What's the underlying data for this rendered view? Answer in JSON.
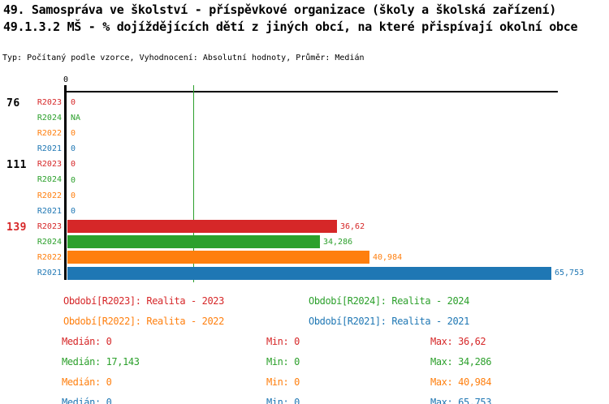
{
  "colors": {
    "red": "#d62728",
    "green": "#2ca02c",
    "orange": "#ff7f0e",
    "blue": "#1f77b4",
    "black": "#000000"
  },
  "header": {
    "title_line1": "49. Samospráva ve školství - příspěvkové organizace (školy a školská zařízení)",
    "title_line2": "49.1.3.2 MŠ - % dojíždějících dětí z jiných obcí, na které přispívají okolní obce",
    "meta_line": "Typ: Počítaný podle vzorce, Vyhodnocení: Absolutní hodnoty, Průměr: Medián"
  },
  "chart_data": {
    "type": "bar",
    "orientation": "horizontal",
    "xlim": [
      0,
      66.7
    ],
    "axis_origin_tick_label": "0",
    "grid": false,
    "median_marker": {
      "value": 17.143,
      "color": "green"
    },
    "series_names": [
      "R2023",
      "R2024",
      "R2022",
      "R2021"
    ],
    "groups": [
      {
        "label": "76",
        "label_color": "black",
        "rows": [
          {
            "series": "R2023",
            "color": "red",
            "value": 0,
            "value_label": "0"
          },
          {
            "series": "R2024",
            "color": "green",
            "value": null,
            "value_label": "NA"
          },
          {
            "series": "R2022",
            "color": "orange",
            "value": 0,
            "value_label": "0"
          },
          {
            "series": "R2021",
            "color": "blue",
            "value": 0,
            "value_label": "0"
          }
        ]
      },
      {
        "label": "111",
        "label_color": "black",
        "rows": [
          {
            "series": "R2023",
            "color": "red",
            "value": 0,
            "value_label": "0"
          },
          {
            "series": "R2024",
            "color": "green",
            "value": 0,
            "value_label": "0"
          },
          {
            "series": "R2022",
            "color": "orange",
            "value": 0,
            "value_label": "0"
          },
          {
            "series": "R2021",
            "color": "blue",
            "value": 0,
            "value_label": "0"
          }
        ]
      },
      {
        "label": "139",
        "label_color": "red",
        "rows": [
          {
            "series": "R2023",
            "color": "red",
            "value": 36.62,
            "value_label": "36,62"
          },
          {
            "series": "R2024",
            "color": "green",
            "value": 34.286,
            "value_label": "34,286"
          },
          {
            "series": "R2022",
            "color": "orange",
            "value": 40.984,
            "value_label": "40,984"
          },
          {
            "series": "R2021",
            "color": "blue",
            "value": 65.753,
            "value_label": "65,753"
          }
        ]
      }
    ],
    "legend": [
      {
        "text": "Období[R2023]: Realita - 2023",
        "color": "red"
      },
      {
        "text": "Období[R2024]: Realita - 2024",
        "color": "green"
      },
      {
        "text": "Období[R2022]: Realita - 2022",
        "color": "orange"
      },
      {
        "text": "Období[R2021]: Realita - 2021",
        "color": "blue"
      }
    ],
    "stats": [
      {
        "color": "red",
        "median": "Medián: 0",
        "min": "Min: 0",
        "max": "Max: 36,62"
      },
      {
        "color": "green",
        "median": "Medián: 17,143",
        "min": "Min: 0",
        "max": "Max: 34,286"
      },
      {
        "color": "orange",
        "median": "Medián: 0",
        "min": "Min: 0",
        "max": "Max: 40,984"
      },
      {
        "color": "blue",
        "median": "Medián: 0",
        "min": "Min: 0",
        "max": "Max: 65,753"
      }
    ]
  }
}
